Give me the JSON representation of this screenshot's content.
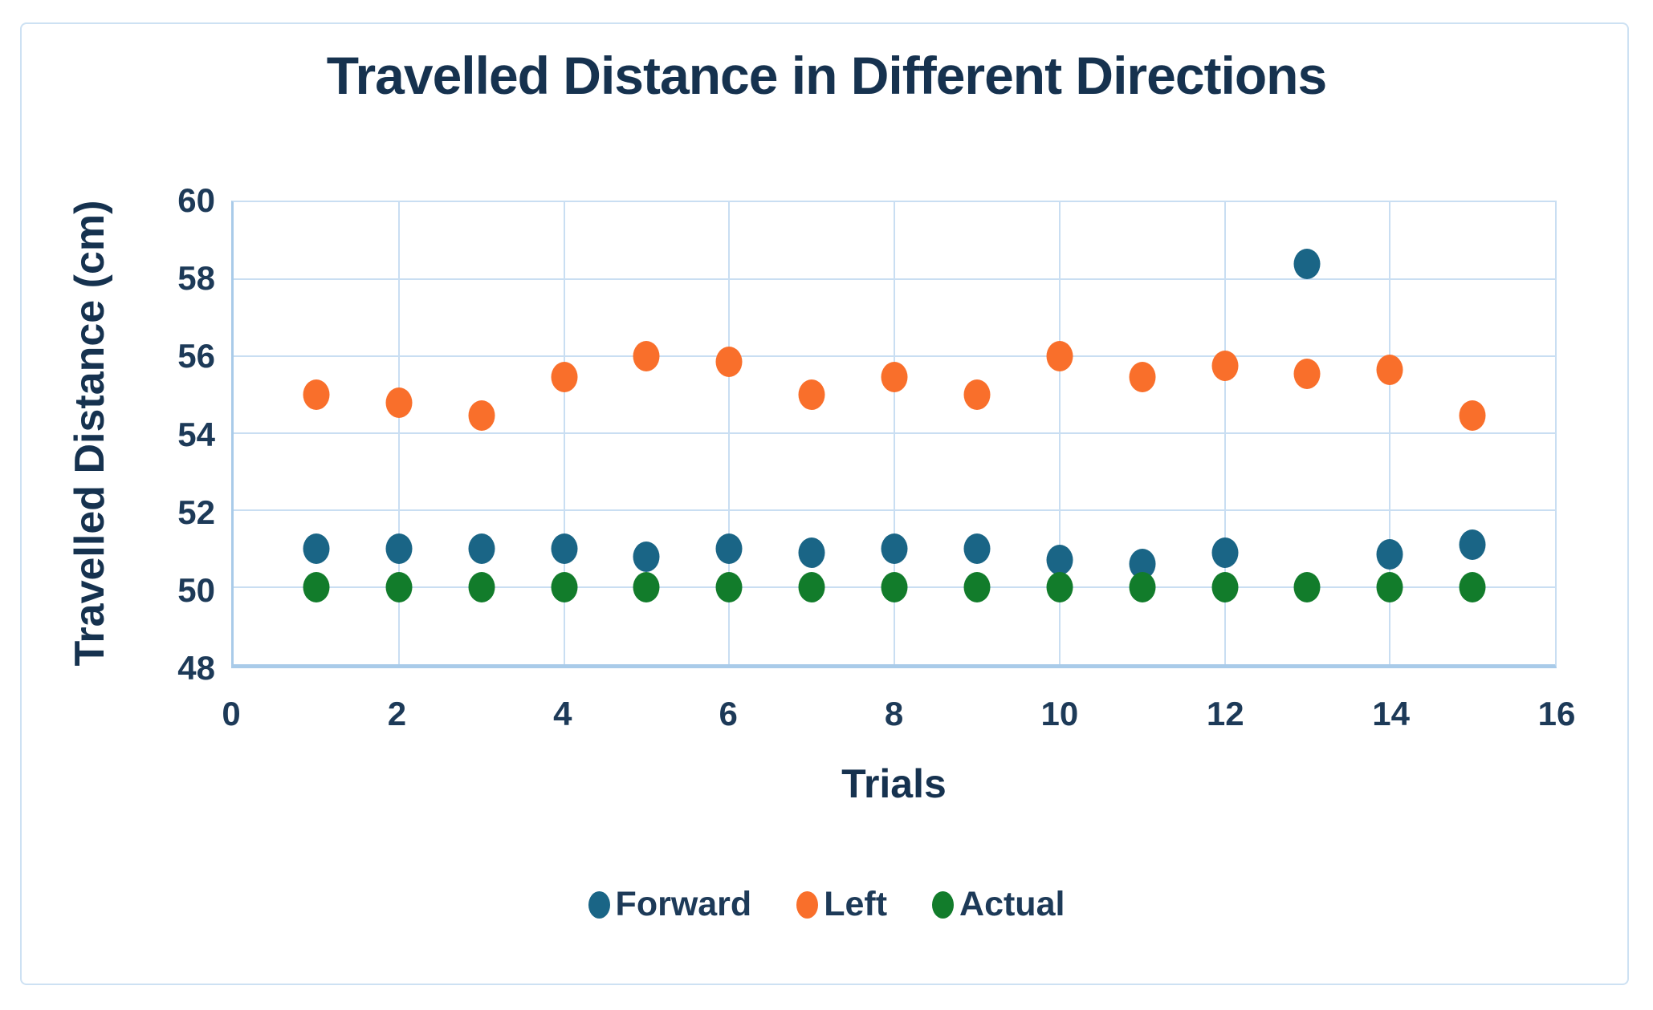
{
  "colors": {
    "title_text": "#16324F",
    "tick_text": "#1D3A58",
    "gridline": "#C9DEF2",
    "axis_line": "#A9CBE9",
    "figure_border": "#CDE1F3",
    "forward_series": "#1A6586",
    "left_series": "#F96F2B",
    "actual_series": "#127C2B"
  },
  "chart_data": {
    "type": "scatter",
    "title": "Travelled Distance in Different Directions",
    "xlabel": "Trials",
    "ylabel": "Travelled Distance (cm)",
    "xlim": [
      0,
      16
    ],
    "ylim": [
      48,
      60
    ],
    "x_ticks": [
      0,
      2,
      4,
      6,
      8,
      10,
      12,
      14,
      16
    ],
    "y_ticks": [
      48,
      50,
      52,
      54,
      56,
      58,
      60
    ],
    "grid": true,
    "legend_position": "bottom",
    "x": [
      1,
      2,
      3,
      4,
      5,
      6,
      7,
      8,
      9,
      10,
      11,
      12,
      13,
      14,
      15
    ],
    "series": [
      {
        "name": "Forward",
        "color": "#1A6586",
        "values": [
          51.0,
          51.0,
          51.0,
          51.0,
          50.8,
          51.0,
          50.9,
          51.0,
          51.0,
          50.7,
          50.6,
          50.9,
          58.4,
          50.85,
          51.1
        ]
      },
      {
        "name": "Left",
        "color": "#F96F2B",
        "values": [
          55.0,
          54.8,
          54.45,
          55.45,
          56.0,
          55.85,
          55.0,
          55.45,
          55.0,
          56.0,
          55.45,
          55.75,
          55.55,
          55.65,
          54.45
        ]
      },
      {
        "name": "Actual",
        "color": "#127C2B",
        "values": [
          50.0,
          50.0,
          50.0,
          50.0,
          50.0,
          50.0,
          50.0,
          50.0,
          50.0,
          50.0,
          50.0,
          50.0,
          50.0,
          50.0,
          50.0
        ]
      }
    ]
  }
}
